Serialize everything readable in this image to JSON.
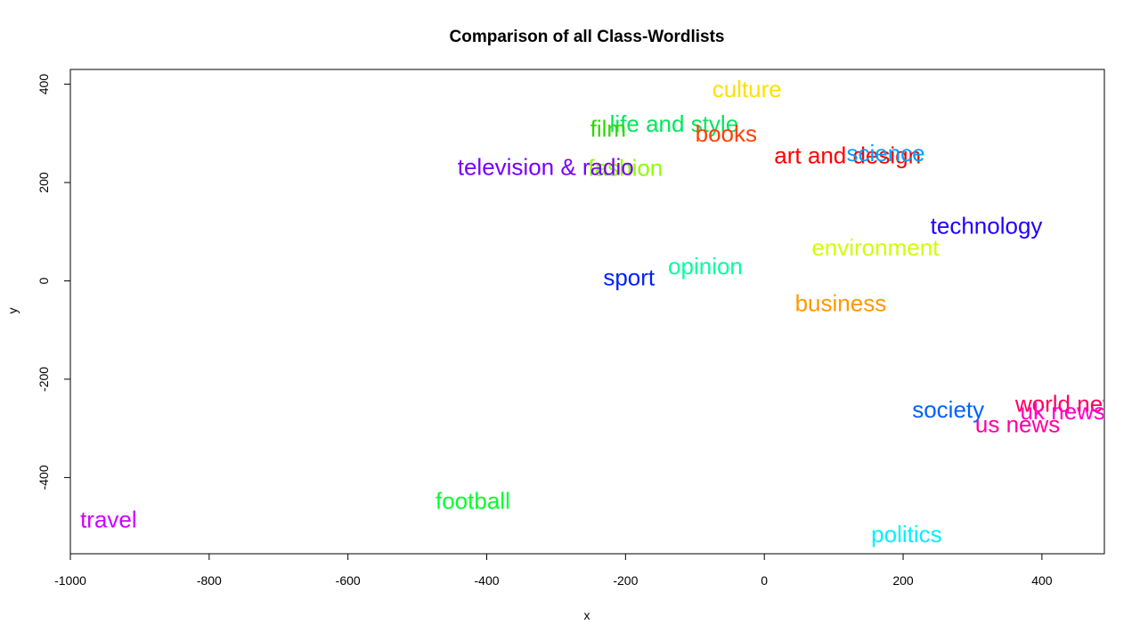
{
  "chart_data": {
    "type": "scatter",
    "title": "Comparison of all Class-Wordlists",
    "xlabel": "x",
    "ylabel": "y",
    "xlim": [
      -1000,
      490
    ],
    "ylim": [
      -555,
      430
    ],
    "xticks": [
      -1000,
      -800,
      -600,
      -400,
      -200,
      0,
      200,
      400
    ],
    "yticks": [
      -400,
      -200,
      0,
      200,
      400
    ],
    "grid": false,
    "points": [
      {
        "label": "culture",
        "x": -25,
        "y": 390,
        "color": "#ffe000"
      },
      {
        "label": "life and style",
        "x": -130,
        "y": 320,
        "color": "#00e85a"
      },
      {
        "label": "film",
        "x": -225,
        "y": 310,
        "color": "#2ed800"
      },
      {
        "label": "books",
        "x": -55,
        "y": 300,
        "color": "#ff4000"
      },
      {
        "label": "art and design",
        "x": 120,
        "y": 255,
        "color": "#ff0000"
      },
      {
        "label": "science",
        "x": 175,
        "y": 260,
        "color": "#00a0ff"
      },
      {
        "label": "fashion",
        "x": -200,
        "y": 230,
        "color": "#8cff00"
      },
      {
        "label": "television & radio",
        "x": -315,
        "y": 232,
        "color": "#7800ff"
      },
      {
        "label": "technology",
        "x": 320,
        "y": 112,
        "color": "#2000ff"
      },
      {
        "label": "environment",
        "x": 160,
        "y": 68,
        "color": "#d0ff00"
      },
      {
        "label": "opinion",
        "x": -85,
        "y": 30,
        "color": "#00ffa0"
      },
      {
        "label": "sport",
        "x": -195,
        "y": 7,
        "color": "#0020ff"
      },
      {
        "label": "business",
        "x": 110,
        "y": -45,
        "color": "#ff9800"
      },
      {
        "label": "world news",
        "x": 445,
        "y": -250,
        "color": "#ff0060"
      },
      {
        "label": "uk news",
        "x": 430,
        "y": -265,
        "color": "#ff00c8"
      },
      {
        "label": "society",
        "x": 265,
        "y": -262,
        "color": "#0060ff"
      },
      {
        "label": "us news",
        "x": 365,
        "y": -292,
        "color": "#ff00a0"
      },
      {
        "label": "football",
        "x": -420,
        "y": -447,
        "color": "#00ff30"
      },
      {
        "label": "travel",
        "x": -945,
        "y": -485,
        "color": "#d000ff"
      },
      {
        "label": "politics",
        "x": 205,
        "y": -515,
        "color": "#00f0ff"
      }
    ]
  }
}
